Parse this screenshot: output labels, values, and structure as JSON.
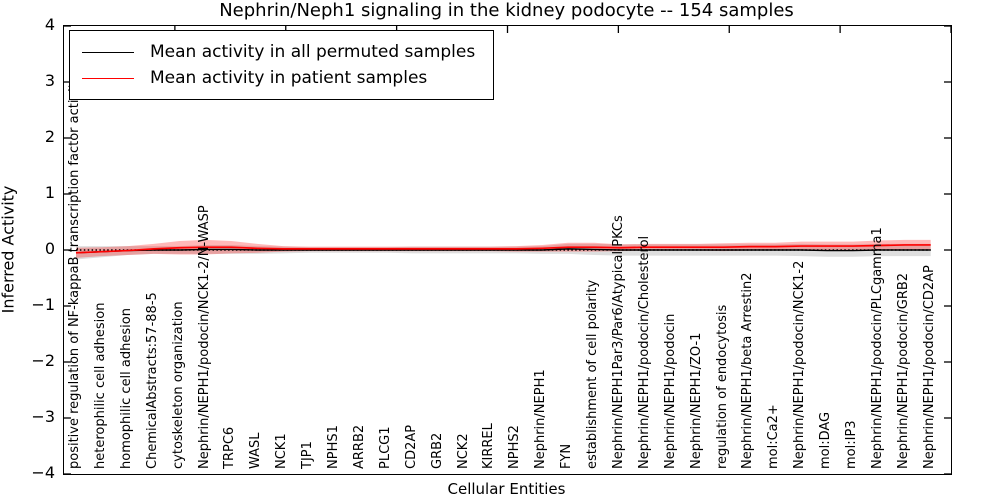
{
  "title": "Nephrin/Neph1 signaling in the kidney podocyte -- 154 samples",
  "legend": {
    "items": [
      {
        "label": "Mean activity in all permuted samples",
        "color": "#000000"
      },
      {
        "label": "Mean activity in patient samples",
        "color": "#ff0000"
      }
    ]
  },
  "colors": {
    "permuted_line": "#000000",
    "patient_line": "#ff0000",
    "permuted_band": "rgba(0,0,0,0.13)",
    "patient_band": "rgba(255,0,0,0.28)",
    "axis": "#000000"
  },
  "chart_data": {
    "type": "line",
    "title": "Nephrin/Neph1 signaling in the kidney podocyte -- 154 samples",
    "xlabel": "Cellular Entities",
    "ylabel": "Inferred Activity",
    "ylim": [
      -4,
      4
    ],
    "yticks": [
      4,
      3,
      2,
      1,
      0,
      -1,
      -2,
      -3,
      -4
    ],
    "grid": false,
    "legend_position": "upper left",
    "zero_line": {
      "value": 0,
      "style": "dotted",
      "color": "#000000"
    },
    "categories": [
      "positive regulation of NF-kappaB transcription factor activity",
      "heterophilic cell adhesion",
      "homophilic cell adhesion",
      "ChemicalAbstracts:57-88-5",
      "cytoskeleton organization",
      "Nephrin/NEPH1/podocin/NCK1-2/N-WASP",
      "TRPC6",
      "WASL",
      "NCK1",
      "TJP1",
      "NPHS1",
      "ARRB2",
      "PLCG1",
      "CD2AP",
      "GRB2",
      "NCK2",
      "KIRREL",
      "NPHS2",
      "Nephrin/NEPH1",
      "FYN",
      "establishment of cell polarity",
      "Nephrin/NEPH1Par3/Par6/Atypical PKCs",
      "Nephrin/NEPH1/podocin/Cholesterol",
      "Nephrin/NEPH1/podocin",
      "Nephrin/NEPH1/ZO-1",
      "regulation of endocytosis",
      "Nephrin/NEPH1/beta Arrestin2",
      "mol:Ca2+",
      "Nephrin/NEPH1/podocin/NCK1-2",
      "mol:DAG",
      "mol:IP3",
      "Nephrin/NEPH1/podocin/PLCgamma1",
      "Nephrin/NEPH1/podocin/GRB2",
      "Nephrin/NEPH1/podocin/CD2AP"
    ],
    "series": [
      {
        "name": "Mean activity in all permuted samples",
        "color": "#000000",
        "band_color": "rgba(0,0,0,0.13)",
        "values": [
          -0.05,
          -0.03,
          -0.01,
          0,
          0,
          0.01,
          0.01,
          0,
          0,
          0,
          0,
          0,
          0,
          0,
          0,
          0,
          0,
          0,
          0,
          0.02,
          0.01,
          0,
          0,
          0,
          0,
          0,
          0,
          0,
          0,
          -0.01,
          -0.01,
          0,
          0,
          0
        ],
        "band_halfwidth": [
          0.12,
          0.1,
          0.08,
          0.07,
          0.07,
          0.08,
          0.08,
          0.07,
          0.06,
          0.05,
          0.05,
          0.05,
          0.05,
          0.06,
          0.06,
          0.06,
          0.06,
          0.06,
          0.07,
          0.09,
          0.1,
          0.1,
          0.1,
          0.1,
          0.1,
          0.1,
          0.1,
          0.1,
          0.11,
          0.11,
          0.11,
          0.11,
          0.11,
          0.11
        ]
      },
      {
        "name": "Mean activity in patient samples",
        "color": "#ff0000",
        "band_color": "rgba(255,0,0,0.28)",
        "values": [
          -0.05,
          -0.03,
          -0.01,
          0.02,
          0.04,
          0.05,
          0.05,
          0.03,
          0.02,
          0.02,
          0.02,
          0.02,
          0.02,
          0.02,
          0.02,
          0.02,
          0.02,
          0.02,
          0.03,
          0.05,
          0.05,
          0.04,
          0.05,
          0.05,
          0.05,
          0.05,
          0.06,
          0.06,
          0.07,
          0.07,
          0.07,
          0.08,
          0.09,
          0.09
        ],
        "band_halfwidth": [
          0.09,
          0.08,
          0.08,
          0.09,
          0.12,
          0.13,
          0.11,
          0.08,
          0.05,
          0.04,
          0.04,
          0.04,
          0.04,
          0.04,
          0.04,
          0.04,
          0.04,
          0.05,
          0.06,
          0.08,
          0.08,
          0.06,
          0.06,
          0.06,
          0.06,
          0.07,
          0.07,
          0.07,
          0.08,
          0.08,
          0.08,
          0.09,
          0.09,
          0.09
        ]
      }
    ]
  }
}
